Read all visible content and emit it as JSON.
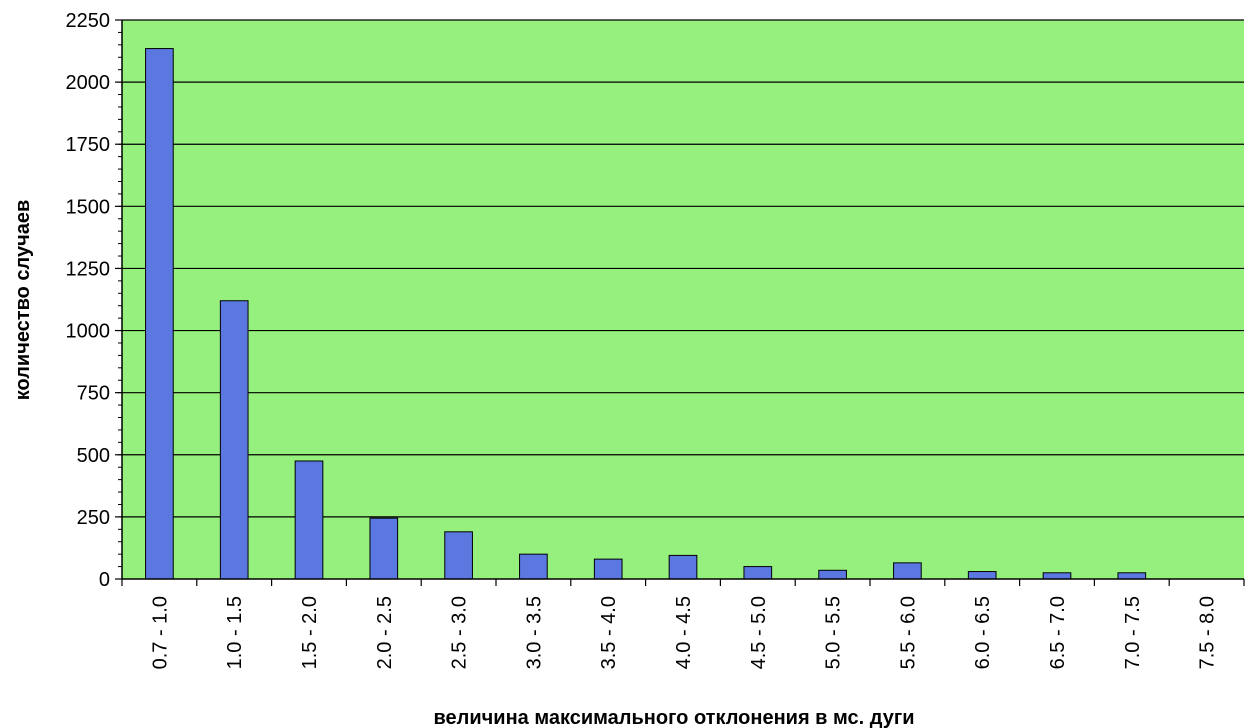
{
  "chart_data": {
    "type": "bar",
    "title": "",
    "xlabel": "величина максимального отклонения в мс. дуги",
    "ylabel": "количество случаев",
    "ylim": [
      0,
      2250
    ],
    "yticks": [
      "0",
      "250",
      "500",
      "750",
      "1000",
      "1250",
      "1500",
      "1750",
      "2000",
      "2250"
    ],
    "grid": true,
    "legend": "none",
    "categories": [
      "0.7 - 1.0",
      "1.0 - 1.5",
      "1.5 - 2.0",
      "2.0 - 2.5",
      "2.5 - 3.0",
      "3.0 - 3.5",
      "3.5 - 4.0",
      "4.0 - 4.5",
      "4.5 - 5.0",
      "5.0 - 5.5",
      "5.5 - 6.0",
      "6.0 - 6.5",
      "6.5 - 7.0",
      "7.0 - 7.5",
      "7.5 - 8.0"
    ],
    "values": [
      2135,
      1120,
      475,
      245,
      190,
      100,
      80,
      95,
      50,
      35,
      65,
      30,
      25,
      25,
      0
    ],
    "colors": {
      "plot_background": "#96f07d",
      "bar_fill": "#5b78e0",
      "bar_stroke": "#000000",
      "gridline": "#000000"
    }
  }
}
